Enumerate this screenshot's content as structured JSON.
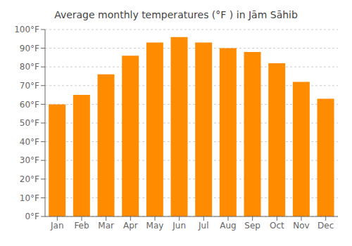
{
  "chart_data": {
    "type": "bar",
    "title": "Average monthly temperatures (°F ) in Jām Sāhib",
    "categories": [
      "Jan",
      "Feb",
      "Mar",
      "Apr",
      "May",
      "Jun",
      "Jul",
      "Aug",
      "Sep",
      "Oct",
      "Nov",
      "Dec"
    ],
    "values": [
      60,
      65,
      76,
      86,
      93,
      96,
      93,
      90,
      88,
      82,
      72,
      63
    ],
    "color": "#FF8C00",
    "ylim": [
      0,
      100
    ],
    "yticks": [
      {
        "value": 0,
        "label": "0°F"
      },
      {
        "value": 10,
        "label": "10°F"
      },
      {
        "value": 20,
        "label": "20°F"
      },
      {
        "value": 30,
        "label": "30°F"
      },
      {
        "value": 40,
        "label": "40°F"
      },
      {
        "value": 50,
        "label": "50°F"
      },
      {
        "value": 60,
        "label": "60°F"
      },
      {
        "value": 70,
        "label": "70°F"
      },
      {
        "value": 80,
        "label": "80°F"
      },
      {
        "value": 90,
        "label": "90°F"
      },
      {
        "value": 100,
        "label": "100°F"
      }
    ],
    "grid": true
  }
}
